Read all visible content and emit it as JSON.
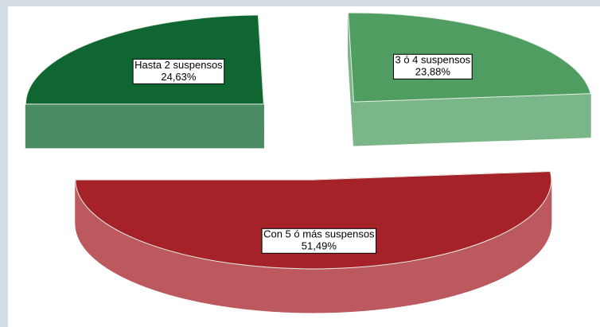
{
  "chart_data": {
    "type": "pie",
    "categories": [
      "Hasta 2 suspensos",
      "3 ó 4 suspensos",
      "Con 5 ó más suspensos"
    ],
    "values": [
      24.63,
      23.88,
      51.49
    ],
    "value_labels": [
      "24,63%",
      "23,88%",
      "51,49%"
    ],
    "colors": [
      "#0f6631",
      "#4f9d60",
      "#a52229"
    ]
  }
}
